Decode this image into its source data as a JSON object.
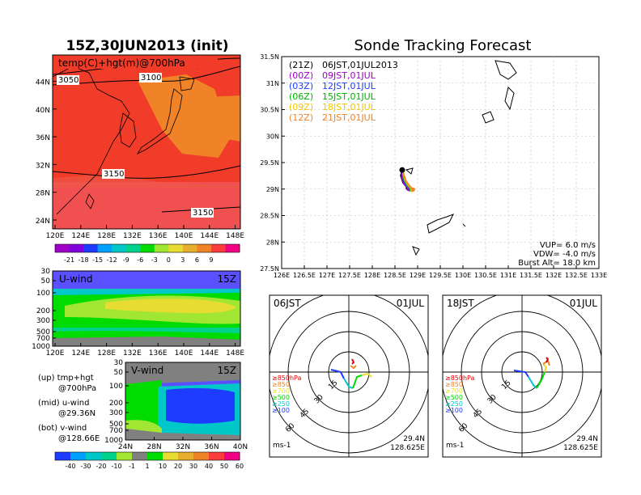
{
  "left_title": "15Z,30JUN2013 (init)",
  "right_title": "Sonde Tracking Forecast",
  "top_map": {
    "label": "temp(C)+hgt(m)@700hPa",
    "lat_ticks": [
      "24N",
      "28N",
      "32N",
      "36N",
      "40N",
      "44N"
    ],
    "lon_ticks": [
      "120E",
      "124E",
      "128E",
      "132E",
      "136E",
      "140E",
      "144E",
      "148E"
    ],
    "contours": [
      "3050",
      "3100",
      "3150",
      "3150"
    ],
    "colorbar_labels": [
      "-21",
      "-18",
      "-15",
      "-12",
      "-9",
      "-6",
      "-3",
      "0",
      "3",
      "6",
      "9"
    ],
    "colorbar_colors": [
      "#a000c8",
      "#8200dc",
      "#1e3cff",
      "#00a0ff",
      "#00c8c8",
      "#00d28c",
      "#00dc00",
      "#a0e632",
      "#e6dc32",
      "#e6af2d",
      "#f08228",
      "#fa3c3c",
      "#f00082"
    ]
  },
  "u_wind": {
    "label": "U-wind",
    "time": "15Z",
    "y_ticks": [
      "30",
      "50",
      "100",
      "200",
      "300",
      "500",
      "700",
      "1000"
    ],
    "x_ticks": [
      "120E",
      "124E",
      "128E",
      "132E",
      "136E",
      "140E",
      "144E",
      "148E"
    ]
  },
  "v_wind": {
    "label": "V-wind",
    "time": "15Z",
    "y_ticks": [
      "30",
      "50",
      "100",
      "200",
      "300",
      "500",
      "700",
      "1000"
    ],
    "x_ticks": [
      "24N",
      "28N",
      "32N",
      "36N",
      "40N"
    ]
  },
  "wind_colorbar": {
    "labels": [
      "-40",
      "-30",
      "-20",
      "-10",
      "-1",
      "1",
      "10",
      "20",
      "30",
      "40",
      "50",
      "60"
    ],
    "colors": [
      "#1e3cff",
      "#00a0ff",
      "#00c8c8",
      "#00d28c",
      "#a0e632",
      "#808080",
      "#00dc00",
      "#e6dc32",
      "#e6af2d",
      "#f08228",
      "#fa3c3c",
      "#f00082"
    ]
  },
  "legend_notes": [
    [
      "(up) tmp+hgt",
      "@700hPa"
    ],
    [
      "(mid) u-wind",
      "@29.36N"
    ],
    [
      "(bot) v-wind",
      "@128.66E"
    ]
  ],
  "track_map": {
    "lat_ticks": [
      "27.5N",
      "28N",
      "28.5N",
      "29N",
      "29.5N",
      "30N",
      "30.5N",
      "31N",
      "31.5N"
    ],
    "lon_ticks": [
      "126E",
      "126.5E",
      "127E",
      "127.5E",
      "128E",
      "128.5E",
      "129E",
      "129.5E",
      "130E",
      "130.5E",
      "131E",
      "131.5E",
      "132E",
      "132.5E",
      "133E"
    ],
    "launches": [
      {
        "utc": "(21Z)",
        "jst": "06JST,01JUL2013",
        "color": "#000000"
      },
      {
        "utc": "(00Z)",
        "jst": "09JST,01JUL",
        "color": "#a000c8"
      },
      {
        "utc": "(03Z)",
        "jst": "12JST,01JUL",
        "color": "#1e3cff"
      },
      {
        "utc": "(06Z)",
        "jst": "15JST,01JUL",
        "color": "#00b400"
      },
      {
        "utc": "(09Z)",
        "jst": "18JST,01JUL",
        "color": "#f0c800"
      },
      {
        "utc": "(12Z)",
        "jst": "21JST,01JUL",
        "color": "#f08228"
      }
    ],
    "params": [
      "VUP= 6.0 m/s",
      "VDW= -4.0 m/s",
      "Burst Alt= 18.0 km"
    ]
  },
  "hodo1": {
    "time": "06JST",
    "date": "01JUL",
    "ring_labels": [
      "15",
      "30",
      "45",
      "60"
    ],
    "levels": [
      {
        "label": "≥850hPa",
        "color": "#e60000"
      },
      {
        "label": "≥850",
        "color": "#f08228"
      },
      {
        "label": "≥700",
        "color": "#e6dc32"
      },
      {
        "label": "≥500",
        "color": "#00dc00"
      },
      {
        "label": "≥250",
        "color": "#00c8c8"
      },
      {
        "label": "≥100",
        "color": "#1e3cff"
      }
    ],
    "unit": "ms-1",
    "lat": "29.4N",
    "lon": "128.625E"
  },
  "hodo2": {
    "time": "18JST",
    "date": "01JUL",
    "ring_labels": [
      "15",
      "30",
      "45",
      "60"
    ],
    "levels": [
      {
        "label": "≥850hPa",
        "color": "#e60000"
      },
      {
        "label": "≥850",
        "color": "#f08228"
      },
      {
        "label": "≥700",
        "color": "#e6dc32"
      },
      {
        "label": "≥500",
        "color": "#00dc00"
      },
      {
        "label": "≥250",
        "color": "#00c8c8"
      },
      {
        "label": "≥100",
        "color": "#1e3cff"
      }
    ],
    "unit": "ms-1",
    "lat": "29.4N",
    "lon": "128.625E"
  },
  "chart_data": [
    {
      "type": "heatmap",
      "title": "15Z,30JUN2013 (init)",
      "subtitle": "temp(C)+hgt(m)@700hPa",
      "x_ticks": [
        "120E",
        "124E",
        "128E",
        "132E",
        "136E",
        "140E",
        "144E",
        "148E"
      ],
      "y_ticks": [
        "24N",
        "28N",
        "32N",
        "36N",
        "40N",
        "44N"
      ],
      "xlim": [
        120,
        149
      ],
      "ylim": [
        22,
        47
      ],
      "contour_labels": [
        3050,
        3100,
        3150,
        3150
      ],
      "colorbar": [
        -21,
        -18,
        -15,
        -12,
        -9,
        -6,
        -3,
        0,
        3,
        6,
        9
      ]
    },
    {
      "type": "heatmap",
      "title": "U-wind 15Z",
      "x_ticks": [
        "120E",
        "124E",
        "128E",
        "132E",
        "136E",
        "140E",
        "144E",
        "148E"
      ],
      "y_ticks": [
        30,
        50,
        100,
        200,
        300,
        500,
        700,
        1000
      ],
      "ylim": [
        1000,
        30
      ]
    },
    {
      "type": "heatmap",
      "title": "V-wind 15Z",
      "x_ticks": [
        "24N",
        "28N",
        "32N",
        "36N",
        "40N"
      ],
      "y_ticks": [
        30,
        50,
        100,
        200,
        300,
        500,
        700,
        1000
      ],
      "ylim": [
        1000,
        30
      ],
      "colorbar": [
        -40,
        -30,
        -20,
        -10,
        -1,
        1,
        10,
        20,
        30,
        40,
        50,
        60
      ]
    },
    {
      "type": "line",
      "title": "Sonde Tracking Forecast",
      "xlim": [
        126,
        133
      ],
      "ylim": [
        27.5,
        31.5
      ],
      "launch_point": {
        "lon": 128.66,
        "lat": 29.36
      },
      "series": [
        {
          "name": "(21Z) 06JST,01JUL2013",
          "x": [
            128.66,
            128.63,
            128.68,
            128.74,
            128.78
          ],
          "y": [
            29.36,
            29.25,
            29.12,
            29.06,
            29.02
          ]
        },
        {
          "name": "(00Z) 09JST,01JUL",
          "x": [
            128.66,
            128.65,
            128.7,
            128.76,
            128.8
          ],
          "y": [
            29.36,
            29.22,
            29.1,
            29.04,
            29.0
          ]
        },
        {
          "name": "(03Z) 12JST,01JUL",
          "x": [
            128.66,
            128.68,
            128.74,
            128.8,
            128.84
          ],
          "y": [
            29.36,
            29.2,
            29.08,
            29.03,
            28.99
          ]
        },
        {
          "name": "(06Z) 15JST,01JUL",
          "x": [
            128.66,
            128.7,
            128.77,
            128.83,
            128.86
          ],
          "y": [
            29.36,
            29.18,
            29.07,
            29.02,
            28.99
          ]
        },
        {
          "name": "(09Z) 18JST,01JUL",
          "x": [
            128.66,
            128.72,
            128.8,
            128.86,
            128.88
          ],
          "y": [
            29.36,
            29.17,
            29.06,
            29.01,
            28.98
          ]
        },
        {
          "name": "(12Z) 21JST,01JUL",
          "x": [
            128.66,
            128.74,
            128.82,
            128.88,
            128.9
          ],
          "y": [
            29.36,
            29.16,
            29.06,
            29.01,
            28.99
          ]
        }
      ]
    }
  ]
}
